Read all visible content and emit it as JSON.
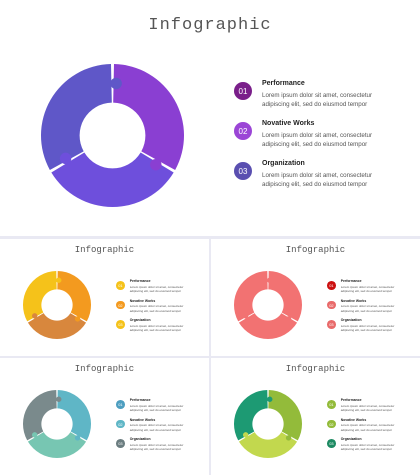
{
  "title": "Infographic",
  "items": [
    {
      "number": "01",
      "label": "Performance",
      "line1": "Lorem ipsum dolor sit amet, consectetur",
      "line2": "adipiscing elit, sed do eiusmod tempor"
    },
    {
      "number": "02",
      "label": "Novative Works",
      "line1": "Lorem ipsum dolor sit amet, consectetur",
      "line2": "adipiscing elit, sed do eiusmod tempor"
    },
    {
      "number": "03",
      "label": "Organization",
      "line1": "Lorem ipsum dolor sit amet, consectetur",
      "line2": "adipiscing elit, sed do eiusmod tempor"
    }
  ],
  "themes": {
    "main": {
      "seg": [
        "#8a3fd2",
        "#6e4fdc",
        "#5f57c8"
      ],
      "badges": [
        "#7a1f8a",
        "#9b45d6",
        "#5a4fb0"
      ]
    },
    "orange": {
      "seg": [
        "#f39a1f",
        "#d8873d",
        "#f5c21a"
      ],
      "badges": [
        "#f5c21a",
        "#f39a1f",
        "#f5c21a"
      ]
    },
    "red": {
      "seg": [
        "#f27272",
        "#f27272",
        "#f27272"
      ],
      "badges": [
        "#cc1111",
        "#e86a6a",
        "#e86a6a"
      ]
    },
    "teal": {
      "seg": [
        "#5fb6c6",
        "#77c6b2",
        "#7a8a8c"
      ],
      "badges": [
        "#4d9ec0",
        "#5fb6c6",
        "#6b7d80"
      ]
    },
    "green": {
      "seg": [
        "#93bb3a",
        "#c2d84e",
        "#1d9a73"
      ],
      "badges": [
        "#93bb3a",
        "#93bb3a",
        "#1d8a62"
      ]
    }
  }
}
